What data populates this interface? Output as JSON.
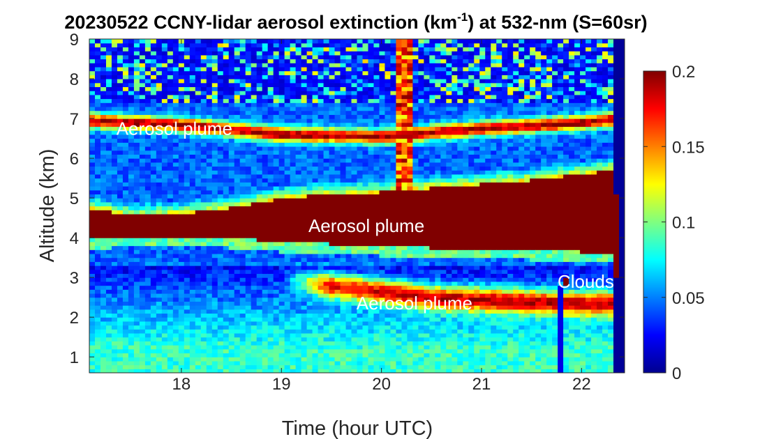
{
  "chart_data": {
    "type": "heatmap",
    "title_main": "20230522 CCNY-lidar aerosol extinction (km",
    "title_sup": "-1",
    "title_tail": ") at 532-nm (S=60sr)",
    "xlabel": "Time (hour UTC)",
    "ylabel": "Altitude (km)",
    "xlim": [
      17.08,
      22.43
    ],
    "ylim": [
      0.6,
      9
    ],
    "x_ticks": [
      18,
      19,
      20,
      21,
      22
    ],
    "x_tick_labels": [
      "18",
      "19",
      "20",
      "21",
      "22"
    ],
    "y_ticks": [
      1,
      2,
      3,
      4,
      5,
      6,
      7,
      8,
      9
    ],
    "y_tick_labels": [
      "1",
      "2",
      "3",
      "4",
      "5",
      "6",
      "7",
      "8",
      "9"
    ],
    "colormap": "jet",
    "colorbar": {
      "range": [
        0,
        0.2
      ],
      "ticks": [
        0,
        0.05,
        0.1,
        0.15,
        0.2
      ],
      "tick_labels": [
        "0",
        "0.05",
        "0.1",
        "0.15",
        "0.2"
      ]
    },
    "grid": false,
    "features": {
      "main_plume": [
        {
          "time": 17.08,
          "bottom_km": 3.95,
          "top_km": 4.75
        },
        {
          "time": 17.5,
          "bottom_km": 4.05,
          "top_km": 4.55
        },
        {
          "time": 18.0,
          "bottom_km": 4.05,
          "top_km": 4.6
        },
        {
          "time": 18.5,
          "bottom_km": 4.0,
          "top_km": 4.75
        },
        {
          "time": 19.0,
          "bottom_km": 3.9,
          "top_km": 5.0
        },
        {
          "time": 19.5,
          "bottom_km": 3.85,
          "top_km": 5.1
        },
        {
          "time": 20.0,
          "bottom_km": 3.8,
          "top_km": 5.15
        },
        {
          "time": 20.5,
          "bottom_km": 3.75,
          "top_km": 5.25
        },
        {
          "time": 21.0,
          "bottom_km": 3.7,
          "top_km": 5.35
        },
        {
          "time": 21.5,
          "bottom_km": 3.7,
          "top_km": 5.45
        },
        {
          "time": 22.0,
          "bottom_km": 3.65,
          "top_km": 5.6
        },
        {
          "time": 22.3,
          "bottom_km": 3.6,
          "top_km": 5.7
        }
      ],
      "upper_plume": [
        {
          "time": 17.08,
          "alt_km": 6.95
        },
        {
          "time": 18.0,
          "alt_km": 6.85
        },
        {
          "time": 19.0,
          "alt_km": 6.6
        },
        {
          "time": 20.0,
          "alt_km": 6.55
        },
        {
          "time": 21.0,
          "alt_km": 6.75
        },
        {
          "time": 22.0,
          "alt_km": 6.9
        },
        {
          "time": 22.35,
          "alt_km": 7.0
        }
      ],
      "lower_plume": [
        {
          "time": 19.0,
          "alt_km": 2.95
        },
        {
          "time": 19.5,
          "alt_km": 2.8
        },
        {
          "time": 20.0,
          "alt_km": 2.65
        },
        {
          "time": 20.5,
          "alt_km": 2.5
        },
        {
          "time": 21.0,
          "alt_km": 2.45
        },
        {
          "time": 21.5,
          "alt_km": 2.4
        },
        {
          "time": 22.0,
          "alt_km": 2.35
        }
      ],
      "clouds": {
        "time": 21.85,
        "alt_km": 2.9
      }
    },
    "annotations": [
      {
        "text": "Aerosol plume",
        "time": 17.35,
        "alt_km": 6.75
      },
      {
        "text": "Aerosol plume",
        "time": 19.27,
        "alt_km": 4.3
      },
      {
        "text": "Aerosol plume",
        "time": 19.75,
        "alt_km": 2.35
      },
      {
        "text": "Clouds",
        "time": 21.76,
        "alt_km": 2.9
      }
    ]
  }
}
